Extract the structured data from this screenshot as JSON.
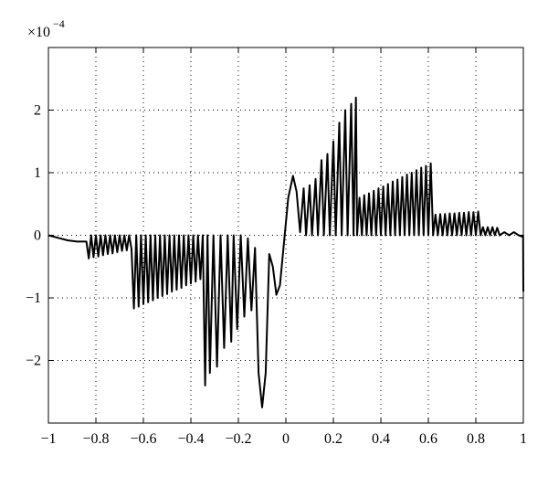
{
  "chart_data": {
    "type": "line",
    "y_multiplier": {
      "base": "×10",
      "exponent": "−4"
    },
    "color": "#000000",
    "grid": true,
    "xlim": [
      -1,
      1
    ],
    "ylim": [
      -3,
      3
    ],
    "xticks": [
      {
        "value": -1,
        "label": "−1"
      },
      {
        "value": -0.8,
        "label": "−0.8"
      },
      {
        "value": -0.6,
        "label": "−0.6"
      },
      {
        "value": -0.4,
        "label": "−0.4"
      },
      {
        "value": -0.2,
        "label": "−0.2"
      },
      0,
      0.2,
      0.4,
      0.6,
      0.8,
      1
    ],
    "yticks": [
      {
        "value": -2,
        "label": "−2"
      },
      {
        "value": -1,
        "label": "−1"
      },
      0,
      1,
      2
    ],
    "x": [
      -1,
      -0.95,
      -0.92,
      -0.88,
      -0.84,
      -0.83,
      -0.82,
      -0.81,
      -0.8,
      -0.79,
      -0.78,
      -0.77,
      -0.76,
      -0.75,
      -0.74,
      -0.73,
      -0.72,
      -0.71,
      -0.7,
      -0.69,
      -0.68,
      -0.67,
      -0.66,
      -0.65,
      -0.64,
      -0.63,
      -0.62,
      -0.61,
      -0.6,
      -0.59,
      -0.58,
      -0.57,
      -0.56,
      -0.55,
      -0.54,
      -0.53,
      -0.52,
      -0.51,
      -0.5,
      -0.49,
      -0.48,
      -0.47,
      -0.46,
      -0.45,
      -0.44,
      -0.43,
      -0.42,
      -0.41,
      -0.4,
      -0.39,
      -0.38,
      -0.37,
      -0.36,
      -0.35,
      -0.34,
      -0.33,
      -0.32,
      -0.305,
      -0.29,
      -0.275,
      -0.26,
      -0.245,
      -0.23,
      -0.22,
      -0.205,
      -0.19,
      -0.175,
      -0.16,
      -0.145,
      -0.13,
      -0.115,
      -0.1,
      -0.085,
      -0.07,
      -0.055,
      -0.04,
      -0.025,
      -0.01,
      0.01,
      0.03,
      0.045,
      0.06,
      0.075,
      0.085,
      0.1,
      0.11,
      0.125,
      0.135,
      0.15,
      0.16,
      0.175,
      0.185,
      0.2,
      0.21,
      0.225,
      0.235,
      0.25,
      0.26,
      0.275,
      0.285,
      0.295,
      0.3,
      0.31,
      0.32,
      0.33,
      0.34,
      0.35,
      0.36,
      0.37,
      0.38,
      0.39,
      0.4,
      0.41,
      0.42,
      0.43,
      0.44,
      0.45,
      0.46,
      0.47,
      0.48,
      0.49,
      0.5,
      0.51,
      0.52,
      0.53,
      0.54,
      0.55,
      0.56,
      0.57,
      0.58,
      0.59,
      0.6,
      0.61,
      0.62,
      0.63,
      0.64,
      0.65,
      0.66,
      0.67,
      0.68,
      0.69,
      0.7,
      0.71,
      0.72,
      0.73,
      0.74,
      0.75,
      0.76,
      0.77,
      0.78,
      0.79,
      0.8,
      0.81,
      0.82,
      0.83,
      0.84,
      0.85,
      0.86,
      0.87,
      0.88,
      0.89,
      0.9,
      0.92,
      0.94,
      0.96,
      0.98,
      0.995,
      0.999,
      1
    ],
    "values": [
      0,
      -0.05,
      -0.08,
      -0.1,
      -0.1,
      -0.37,
      0,
      -0.35,
      0,
      -0.34,
      0,
      -0.32,
      0,
      -0.3,
      0,
      -0.29,
      0,
      -0.27,
      0,
      -0.25,
      0,
      -0.24,
      0,
      -0.22,
      -1.17,
      0,
      -1.14,
      0,
      -1.1,
      0,
      -1.07,
      0,
      -1.04,
      0,
      -1.0,
      0,
      -0.97,
      0,
      -0.94,
      0,
      -0.9,
      0,
      -0.87,
      0,
      -0.84,
      0,
      -0.8,
      0,
      -0.77,
      0,
      -0.74,
      0,
      -0.7,
      0,
      -2.4,
      0,
      -2.2,
      0,
      -2.1,
      0,
      -1.8,
      0,
      -1.7,
      0,
      -1.5,
      0,
      -1.3,
      -0.05,
      -1.2,
      -0.2,
      -2.2,
      -2.75,
      -2.2,
      -0.3,
      -0.5,
      -0.95,
      -0.8,
      -0.2,
      0.6,
      0.95,
      0.7,
      0.05,
      0.75,
      0,
      0.8,
      0,
      0.9,
      0,
      1.2,
      0,
      1.3,
      0,
      1.5,
      0,
      1.8,
      0,
      2.0,
      0,
      2.1,
      0,
      2.2,
      0,
      0.6,
      0,
      0.64,
      0,
      0.67,
      0,
      0.71,
      0,
      0.75,
      0,
      0.78,
      0,
      0.82,
      0,
      0.86,
      0,
      0.89,
      0,
      0.93,
      0,
      0.97,
      0,
      1.0,
      0,
      1.04,
      0,
      1.08,
      0,
      1.11,
      0,
      1.15,
      0,
      0.33,
      0,
      0.34,
      0,
      0.34,
      0,
      0.35,
      0,
      0.35,
      0,
      0.36,
      0,
      0.36,
      0,
      0.37,
      0,
      0.37,
      0,
      0.38,
      0,
      0.13,
      0,
      0.13,
      0,
      0.13,
      0,
      0.12,
      0,
      0.05,
      0,
      0.05,
      0,
      -0.02,
      0,
      -0.9
    ]
  }
}
